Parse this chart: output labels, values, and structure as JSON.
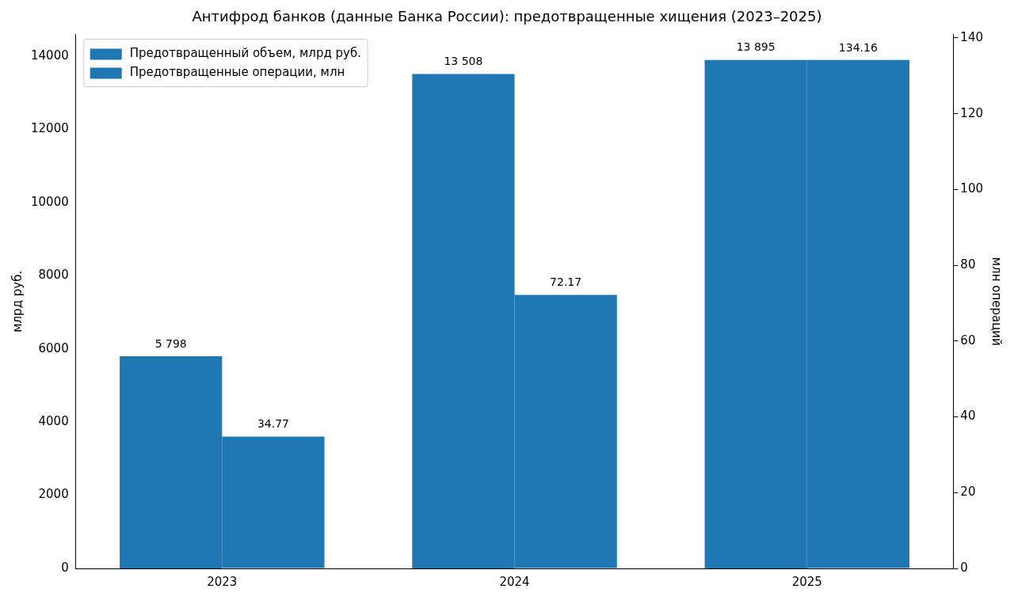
{
  "chart_data": {
    "type": "bar",
    "title": "Антифрод банков (данные Банка России): предотвращенные хищения (2023–2025)",
    "ylabel": "млрд руб.",
    "y2label": "млн операций",
    "categories": [
      "2023",
      "2024",
      "2025"
    ],
    "series": [
      {
        "name": "Предотвращенный объем, млрд руб.",
        "color": "#1f77b4",
        "values": [
          5798,
          13508,
          13895
        ],
        "value_labels": [
          "5 798",
          "13 508",
          "13 895"
        ]
      },
      {
        "name": "Предотвращенные операции, млн",
        "color": "#1f77b4",
        "values": [
          34.77,
          72.17,
          134.16
        ],
        "axis": "y2",
        "value_labels": [
          "34.77",
          "72.17",
          "134.16"
        ]
      }
    ],
    "ylim": [
      0,
      14590
    ],
    "yticks": [
      0,
      2000,
      4000,
      6000,
      8000,
      10000,
      12000,
      14000
    ],
    "y2lim": [
      0,
      140.9
    ],
    "y2ticks": [
      0,
      20,
      40,
      60,
      80,
      100,
      120,
      140
    ],
    "grid": false,
    "legend": "top left"
  }
}
